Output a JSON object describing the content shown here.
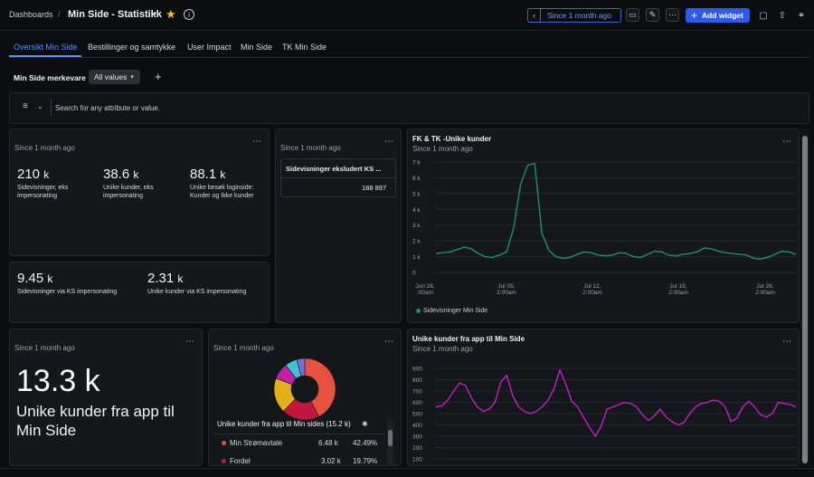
{
  "colors": {
    "accent": "#5d8cff",
    "star": "#f5c518",
    "teal": "#1f8f6e",
    "magenta": "#c21fc2",
    "add_btn": "#2f5be8"
  },
  "topbar": {
    "breadcrumb": "Dashboards",
    "separator": "/",
    "title": "Min Side - Statistikk",
    "time_range": "Since 1 month ago",
    "add_widget": "Add widget"
  },
  "tabs": [
    "Oversikt Min Side",
    "Bestillinger og samtykke",
    "User Impact",
    "Min Side",
    "TK Min Side"
  ],
  "filter": {
    "label": "Min Side merkevare",
    "value": "All values",
    "add": "+"
  },
  "search": {
    "placeholder": "Search for any attribute or value."
  },
  "card1": {
    "since": "Since 1 month ago",
    "metrics": [
      {
        "value": "210",
        "unit": "k",
        "label": "Sidevisninger, eks impersonating"
      },
      {
        "value": "38.6",
        "unit": "k",
        "label": "Unike kunder, eks impersonating"
      },
      {
        "value": "88.1",
        "unit": "k",
        "label": "Unike besøk loginside: Kunder og Ikke kunder"
      }
    ]
  },
  "card2": {
    "metrics": [
      {
        "value": "9.45",
        "unit": "k",
        "label": "Sidevisninger via KS impersonating"
      },
      {
        "value": "2.31",
        "unit": "k",
        "label": "Unike kunder via KS impersonating"
      }
    ]
  },
  "card3": {
    "since": "Since 1 month ago",
    "table_header": "Sidevisninger eksludert KS ...",
    "table_value": "188 897"
  },
  "card4": {
    "title": "FK & TK -Unike kunder",
    "since": "Since 1 month ago",
    "legend": "Sidevisninger Min Side",
    "chart_data": {
      "type": "line",
      "y_ticks": [
        "7 k",
        "6 k",
        "5 k",
        "4 k",
        "3 k",
        "2 k",
        "1 k",
        "0"
      ],
      "ylim": [
        0,
        7000
      ],
      "x_ticks": [
        [
          "Jun 28,",
          ":00am"
        ],
        [
          "Jul 05,",
          "2:00am"
        ],
        [
          "Jul 12,",
          "2:00am"
        ],
        [
          "Jul 19,",
          "2:00am"
        ],
        [
          "Jul 26,",
          "2:00am"
        ]
      ],
      "series": [
        {
          "name": "Sidevisninger Min Side",
          "color": "#1f8f6e",
          "values": [
            1200,
            1250,
            1300,
            1450,
            1600,
            1500,
            1200,
            1000,
            950,
            1100,
            1300,
            2800,
            5600,
            6800,
            6900,
            2500,
            1400,
            1000,
            900,
            950,
            1150,
            1300,
            1250,
            1100,
            1050,
            1100,
            1250,
            1200,
            1000,
            950,
            1150,
            1350,
            1300,
            1100,
            1050,
            1150,
            1200,
            1300,
            1550,
            1500,
            1350,
            1250,
            1200,
            1150,
            1100,
            900,
            850,
            950,
            1150,
            1350,
            1300,
            1150
          ]
        }
      ]
    }
  },
  "card5": {
    "since": "Since 1 month ago",
    "value": "13.3",
    "unit": "k",
    "label": "Unike kunder fra app til Min Side"
  },
  "card6": {
    "since": "Since 1 month ago",
    "legend_title": "Unike kunder fra app til Min sides (15.2 k)",
    "chart_data": {
      "type": "pie",
      "slices": [
        {
          "name": "Min Strømavtale",
          "value": "6.48 k",
          "pct": "42.49%",
          "share": 42.49,
          "color": "#e8503f"
        },
        {
          "name": "Fordel",
          "value": "3.02 k",
          "pct": "19.79%",
          "share": 19.79,
          "color": "#c2163f"
        },
        {
          "name": "",
          "share": 18.5,
          "color": "#e2b018"
        },
        {
          "name": "",
          "share": 8.5,
          "color": "#c41fa8"
        },
        {
          "name": "",
          "share": 6.5,
          "color": "#3cc3d6"
        },
        {
          "name": "",
          "share": 4.22,
          "color": "#7a6fd1"
        }
      ]
    }
  },
  "card7": {
    "title": "Unike kunder fra app til Min Side",
    "since": "Since 1 month ago",
    "chart_data": {
      "type": "line",
      "y_ticks": [
        "900",
        "800",
        "700",
        "600",
        "500",
        "400",
        "300",
        "200",
        "100"
      ],
      "ylim": [
        100,
        900
      ],
      "series": [
        {
          "color": "#c21fc2",
          "values": [
            560,
            570,
            620,
            700,
            770,
            750,
            640,
            560,
            520,
            540,
            600,
            780,
            840,
            660,
            560,
            520,
            500,
            520,
            560,
            620,
            720,
            890,
            760,
            610,
            560,
            470,
            380,
            300,
            390,
            540,
            560,
            580,
            600,
            590,
            560,
            490,
            440,
            480,
            540,
            470,
            430,
            400,
            420,
            500,
            560,
            590,
            600,
            620,
            610,
            560,
            430,
            460,
            560,
            610,
            560,
            490,
            470,
            500,
            600,
            590,
            580,
            560
          ]
        }
      ]
    }
  }
}
